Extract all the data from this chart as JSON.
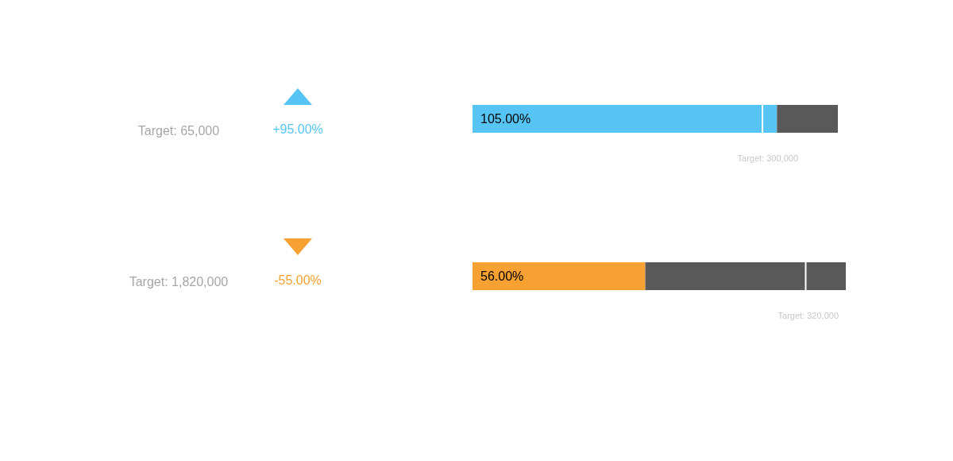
{
  "chart_data": [
    {
      "type": "bar",
      "orientation": "horizontal",
      "stacked": true,
      "categories": [
        null
      ],
      "legend": false,
      "tick_labels": false,
      "series": [
        {
          "color": "#56c5f5",
          "values": [
            105
          ],
          "value_labels": [
            "105.00%"
          ]
        },
        {
          "color": "#595959",
          "values": [
            21
          ]
        }
      ],
      "ref_lines": [
        {
          "axis": "x",
          "value": 100,
          "color": "#ffffff"
        }
      ],
      "annotations": [
        "Target: 65,000",
        "+95.00%",
        "Target: 300,000"
      ]
    },
    {
      "type": "bar",
      "orientation": "horizontal",
      "stacked": true,
      "categories": [
        null
      ],
      "legend": false,
      "tick_labels": false,
      "series": [
        {
          "color": "#f7a133",
          "values": [
            56
          ],
          "value_labels": [
            "56.00%"
          ]
        },
        {
          "color": "#595959",
          "values": [
            65
          ]
        }
      ],
      "ref_lines": [
        {
          "axis": "x",
          "value": 108,
          "color": "#ffffff"
        }
      ],
      "annotations": [
        "Target: 1,820,000",
        "-55.00%",
        "Target: 320,000"
      ]
    }
  ]
}
